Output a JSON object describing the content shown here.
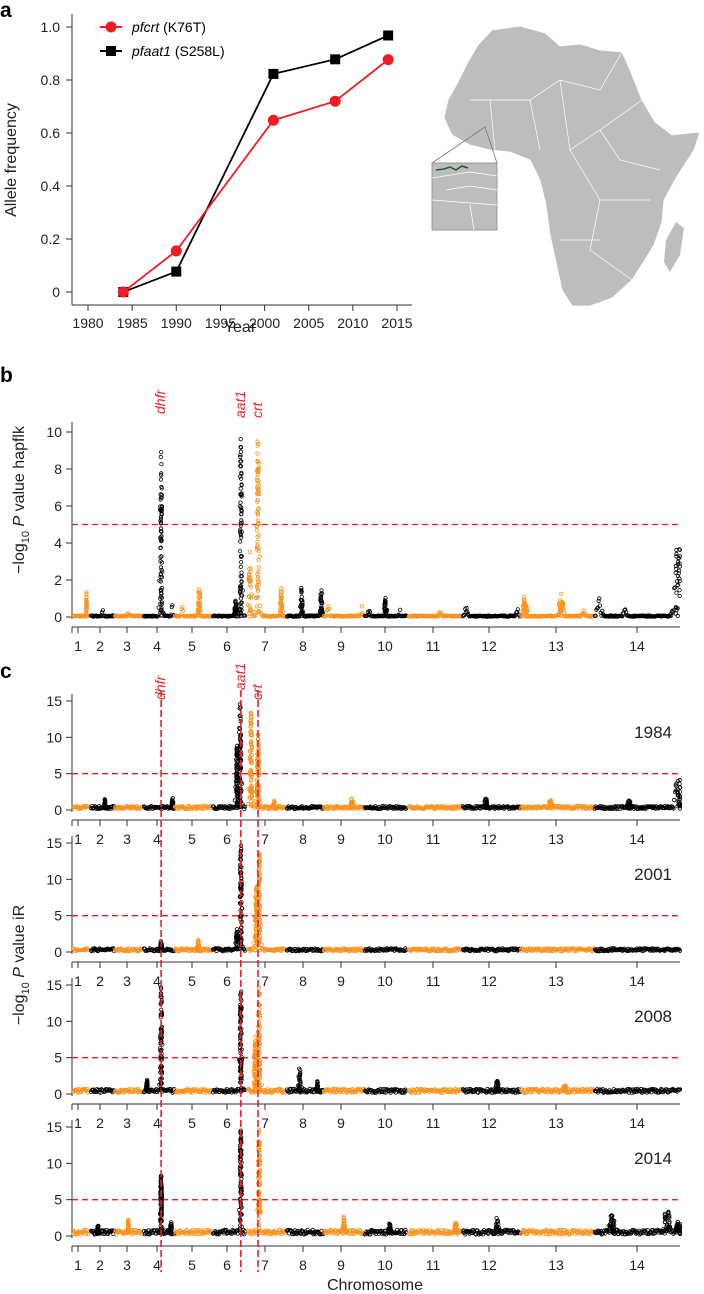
{
  "panel_labels": {
    "a": "a",
    "b": "b",
    "c": "c"
  },
  "colors": {
    "red": "#ee1c25",
    "black": "#000000",
    "orange": "#f7931e",
    "map_gray": "#bdbdbd"
  },
  "chart_data": [
    {
      "id": "panel_a",
      "type": "line",
      "xlabel": "Year",
      "ylabel": "Allele frequency",
      "xlim": [
        1978,
        2017
      ],
      "ylim": [
        -0.05,
        1.05
      ],
      "xticks": [
        "1980",
        "1985",
        "1990",
        "1995",
        "2000",
        "2005",
        "2010",
        "2015"
      ],
      "yticks": [
        "0",
        "0.2",
        "0.4",
        "0.6",
        "0.8",
        "1.0"
      ],
      "legend_position": "top-left",
      "series": [
        {
          "gene": "pfcrt",
          "allele": "(K76T)",
          "color": "#ee1c25",
          "marker": "circle",
          "x": [
            1984,
            1990,
            2001,
            2008,
            2014
          ],
          "y": [
            0.0,
            0.155,
            0.648,
            0.72,
            0.877
          ]
        },
        {
          "gene": "pfaat1",
          "allele": "(S258L)",
          "color": "#000000",
          "marker": "square",
          "x": [
            1984,
            1990,
            2001,
            2008,
            2014
          ],
          "y": [
            0.0,
            0.077,
            0.823,
            0.878,
            0.968
          ]
        }
      ]
    },
    {
      "id": "panel_b",
      "type": "scatter",
      "ylabel_prefix": "−log",
      "ylabel_sub": "10",
      "ylabel_p": "P",
      "ylabel_suffix": "value hapflk",
      "ylim": [
        0,
        10.5
      ],
      "yticks": [
        "0",
        "2",
        "4",
        "6",
        "8",
        "10"
      ],
      "threshold": 5,
      "baseline": 0.08,
      "peaks": [
        [
          1,
          0.9,
          1.55
        ],
        [
          2,
          0.5,
          0.55
        ],
        [
          3,
          0.5,
          0.5
        ],
        [
          4,
          0.57,
          9.2
        ],
        [
          4,
          0.95,
          0.9
        ],
        [
          5,
          0.67,
          2.0
        ],
        [
          5,
          0.2,
          0.6
        ],
        [
          6,
          0.87,
          10.0
        ],
        [
          6,
          0.7,
          1.1
        ],
        [
          7,
          0.05,
          3.7
        ],
        [
          7,
          0.27,
          10.3
        ],
        [
          7,
          0.9,
          1.6
        ],
        [
          8,
          0.4,
          1.6
        ],
        [
          8,
          0.95,
          1.6
        ],
        [
          9,
          0.1,
          0.9
        ],
        [
          9,
          0.95,
          1.0
        ],
        [
          10,
          0.1,
          0.8
        ],
        [
          10,
          0.5,
          1.1
        ],
        [
          10,
          0.85,
          0.5
        ],
        [
          11,
          0.6,
          0.5
        ],
        [
          12,
          0.05,
          0.6
        ],
        [
          12,
          0.95,
          0.5
        ],
        [
          13,
          0.05,
          1.1
        ],
        [
          13,
          0.55,
          1.3
        ],
        [
          13,
          0.85,
          0.4
        ],
        [
          14,
          0.05,
          1.0
        ],
        [
          14,
          0.35,
          0.5
        ],
        [
          14,
          0.98,
          4.4
        ]
      ]
    },
    {
      "id": "panel_c",
      "type": "scatter",
      "ylabel_prefix": "−log",
      "ylabel_sub": "10",
      "ylabel_p": "P",
      "ylabel_suffix": "value iR",
      "xlabel": "Chromosome",
      "ylim": [
        0,
        16
      ],
      "yticks": [
        "0",
        "5",
        "10",
        "15"
      ],
      "threshold": 5,
      "subplots": [
        {
          "year": "1984",
          "baseline": 0.55,
          "peaks": [
            [
              2,
              0.6,
              1.6
            ],
            [
              4,
              0.95,
              1.7
            ],
            [
              6,
              0.85,
              15.5
            ],
            [
              6,
              0.75,
              9
            ],
            [
              7,
              0.08,
              13.5
            ],
            [
              7,
              0.27,
              10.5
            ],
            [
              7,
              0.7,
              1.6
            ],
            [
              9,
              0.7,
              1.7
            ],
            [
              12,
              0.4,
              1.7
            ],
            [
              13,
              0.4,
              1.5
            ],
            [
              14,
              0.98,
              5.0
            ],
            [
              14,
              0.4,
              1.3
            ]
          ]
        },
        {
          "year": "2001",
          "baseline": 0.5,
          "peaks": [
            [
              4,
              0.57,
              1.7
            ],
            [
              5,
              0.65,
              1.9
            ],
            [
              6,
              0.87,
              15.5
            ],
            [
              6,
              0.75,
              3.2
            ],
            [
              7,
              0.3,
              15.5
            ],
            [
              7,
              0.22,
              10
            ]
          ]
        },
        {
          "year": "2008",
          "baseline": 0.7,
          "peaks": [
            [
              4,
              0.57,
              15.2
            ],
            [
              4,
              0.1,
              2.0
            ],
            [
              6,
              0.87,
              15.5
            ],
            [
              7,
              0.3,
              15.0
            ],
            [
              7,
              0.2,
              8
            ],
            [
              8,
              0.35,
              3.8
            ],
            [
              8,
              0.85,
              1.9
            ],
            [
              12,
              0.6,
              2.1
            ],
            [
              13,
              0.6,
              1.3
            ]
          ]
        },
        {
          "year": "2014",
          "baseline": 0.85,
          "peaks": [
            [
              2,
              0.3,
              1.8
            ],
            [
              3,
              0.5,
              2.6
            ],
            [
              4,
              0.57,
              8.5
            ],
            [
              4,
              0.9,
              2.2
            ],
            [
              6,
              0.87,
              15.5
            ],
            [
              7,
              0.3,
              15.8
            ],
            [
              9,
              0.5,
              2.8
            ],
            [
              10,
              0.6,
              2.1
            ],
            [
              11,
              0.9,
              2.0
            ],
            [
              12,
              0.6,
              2.7
            ],
            [
              14,
              0.2,
              3.1
            ],
            [
              14,
              0.85,
              4.2
            ],
            [
              14,
              0.98,
              2.3
            ]
          ]
        }
      ]
    }
  ],
  "chromosomes": [
    "1",
    "2",
    "3",
    "4",
    "5",
    "6",
    "7",
    "8",
    "9",
    "10",
    "11",
    "12",
    "13",
    "14"
  ],
  "genes": [
    {
      "name": "dhfr",
      "chrom": 4,
      "pos": 0.57
    },
    {
      "name": "aat1",
      "chrom": 6,
      "pos": 0.87
    },
    {
      "name": "crt",
      "chrom": 7,
      "pos": 0.27
    }
  ]
}
